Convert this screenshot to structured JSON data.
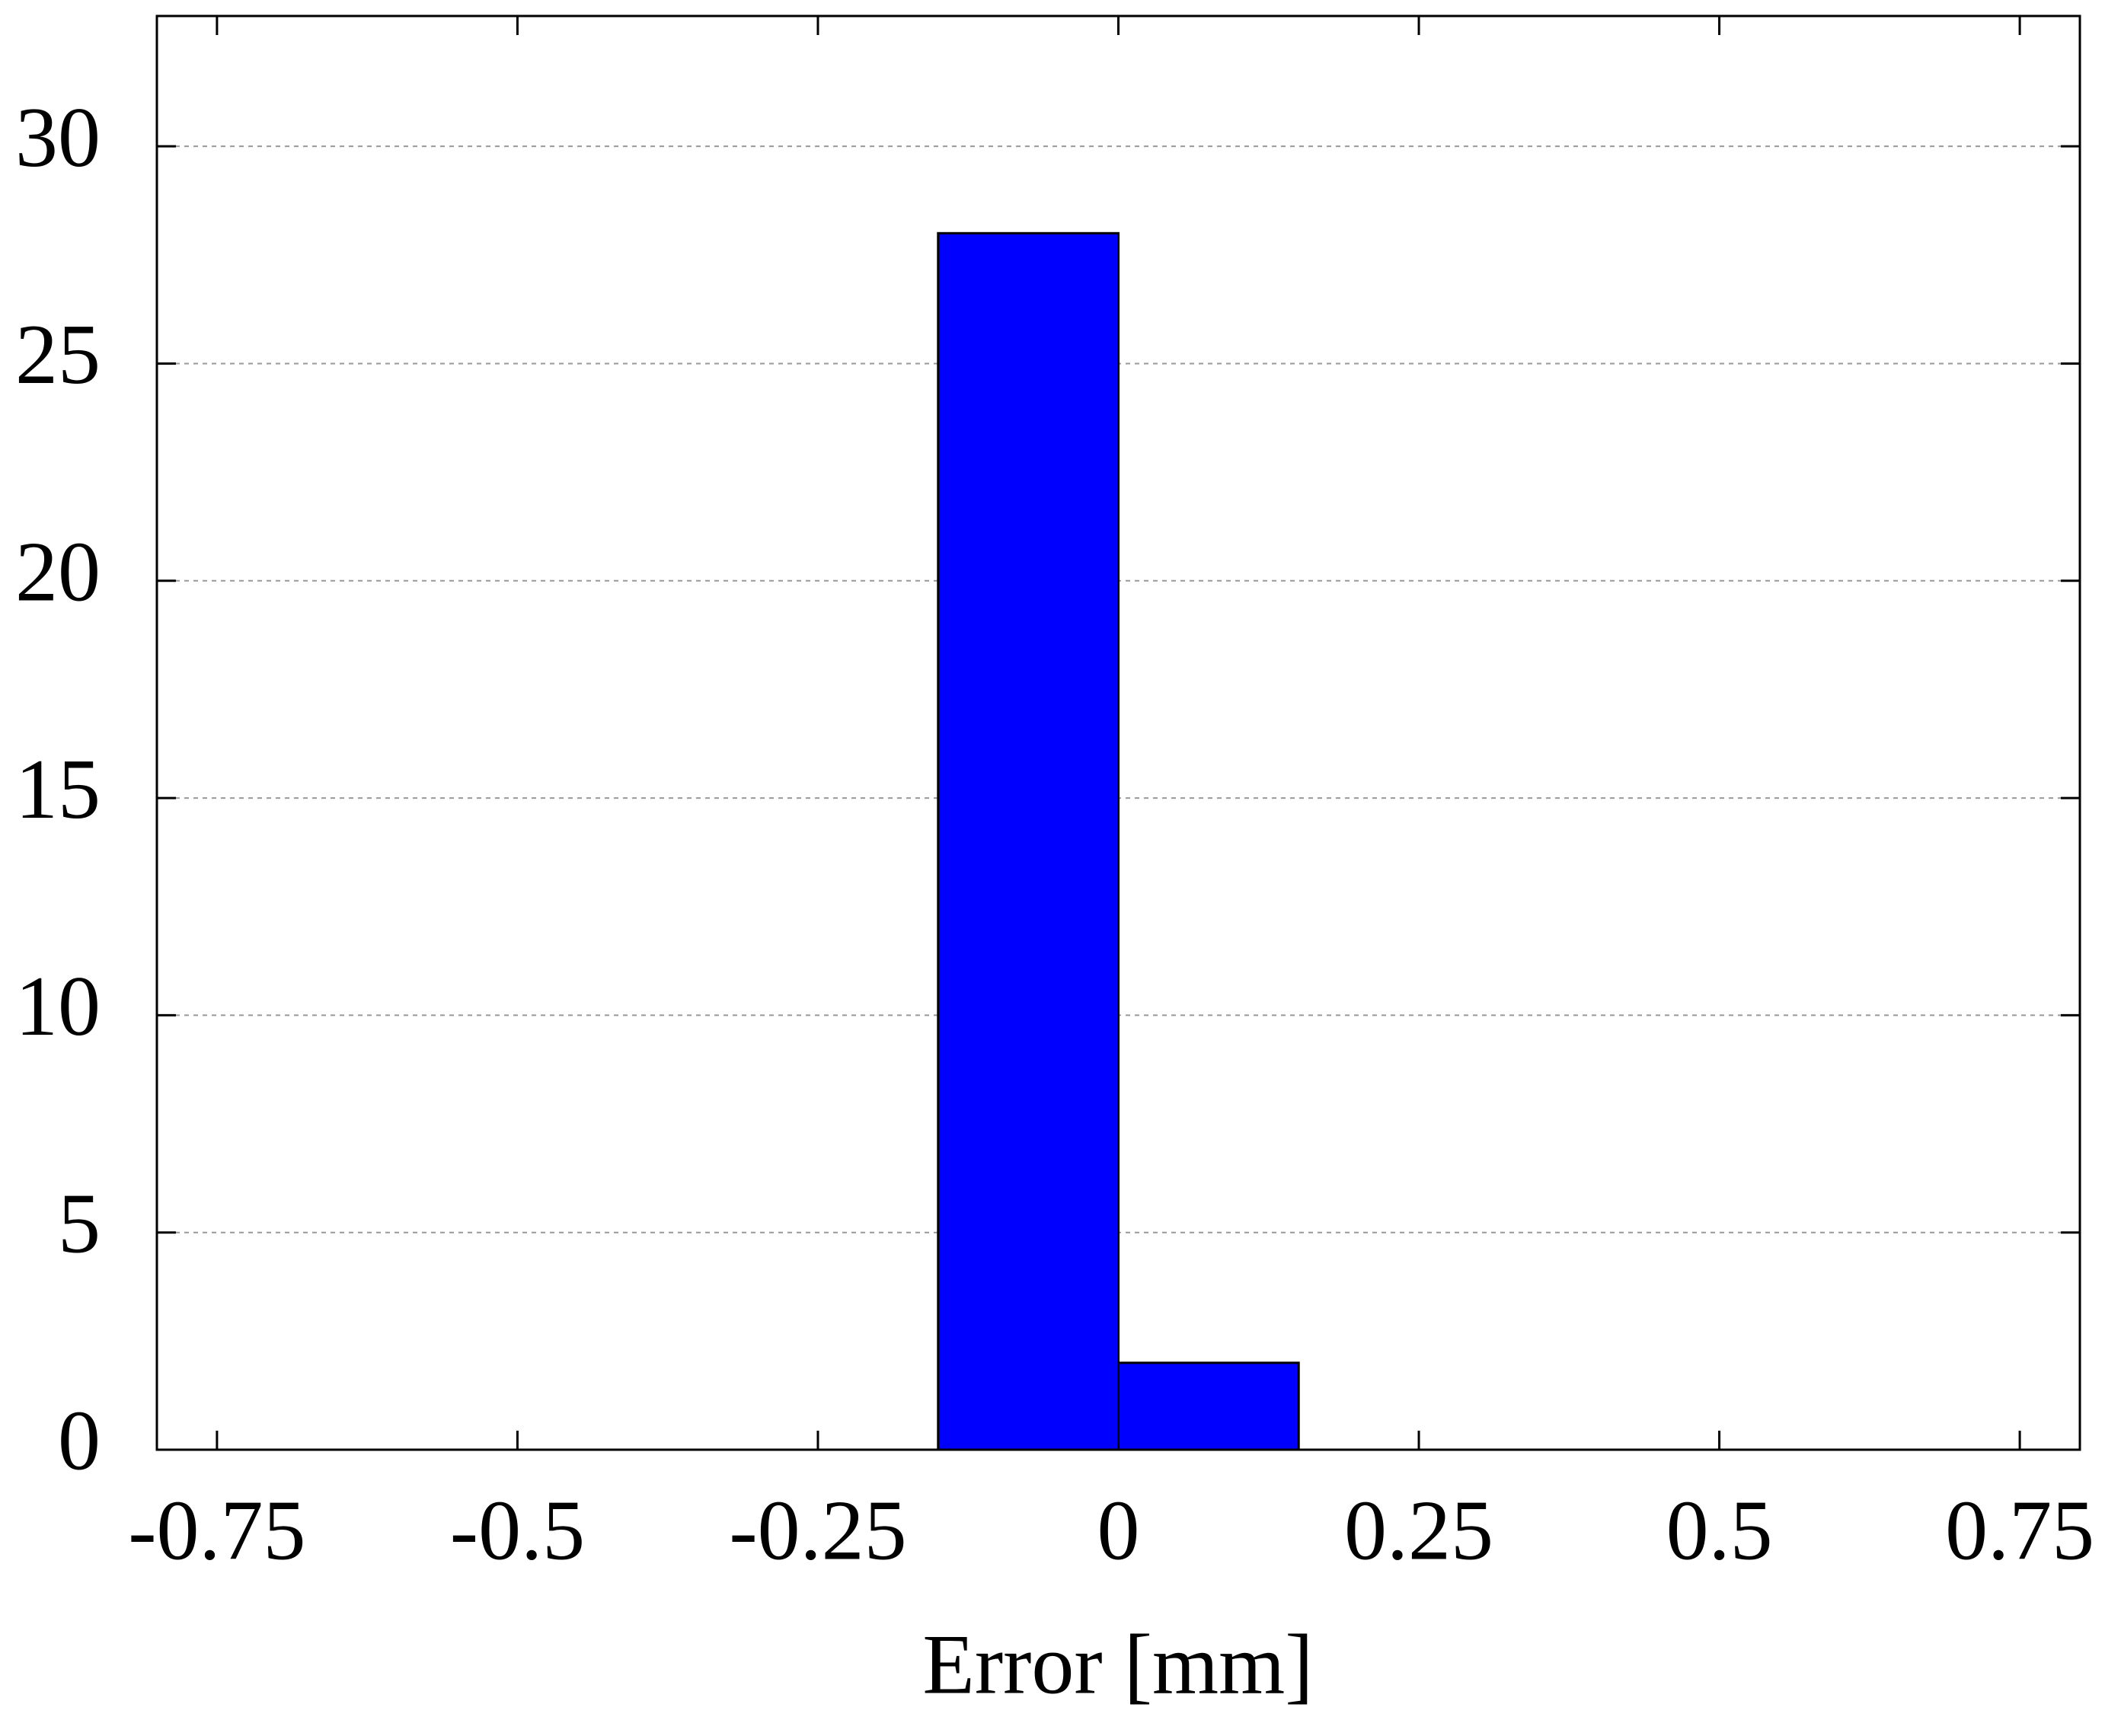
{
  "chart_data": {
    "type": "histogram",
    "x_label": "Error [mm]",
    "bins": [
      -0.15,
      0,
      0.15
    ],
    "counts": [
      28,
      2
    ],
    "color": "#0000ff",
    "xlim": [
      -0.8,
      0.8
    ],
    "ylim": [
      0,
      33
    ],
    "xticks": [
      -0.75,
      -0.5,
      -0.25,
      0,
      0.25,
      0.5,
      0.75
    ],
    "yticks": [
      0,
      5,
      10,
      15,
      20,
      25,
      30
    ],
    "grid": true
  }
}
